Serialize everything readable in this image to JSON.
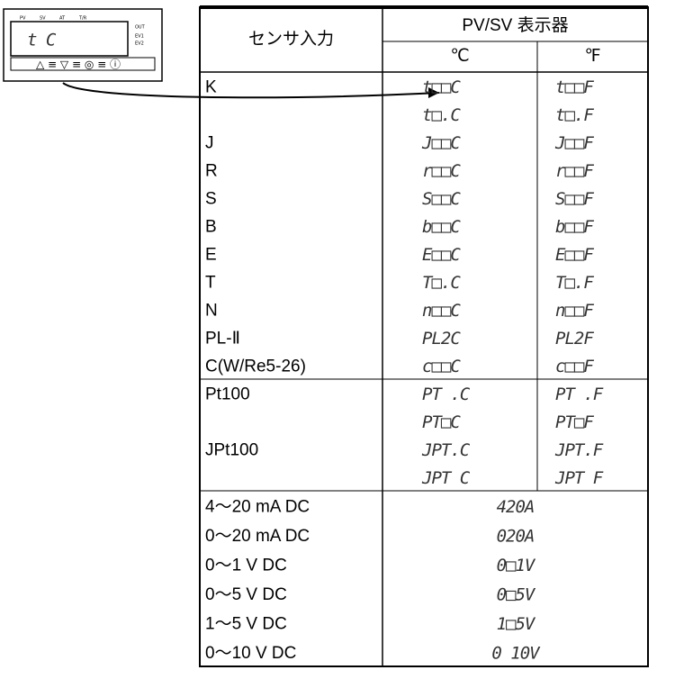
{
  "device": {
    "labels": [
      "PV",
      "SV",
      "AT",
      "T/R",
      "OUT",
      "EV1",
      "EV2"
    ],
    "display": "t   C"
  },
  "table": {
    "header": {
      "sensor": "センサ入力",
      "display": "PV/SV 表示器",
      "c": "℃",
      "f": "℉"
    },
    "sections": [
      {
        "rows": [
          {
            "label": "K",
            "c": "t□□C",
            "f": "t□□F"
          },
          {
            "label": null,
            "c": "t□.C",
            "f": "t□.F"
          },
          {
            "label": "J",
            "c": "J□□C",
            "f": "J□□F"
          },
          {
            "label": "R",
            "c": "r□□C",
            "f": "r□□F"
          },
          {
            "label": "S",
            "c": "S□□C",
            "f": "S□□F"
          },
          {
            "label": "B",
            "c": "b□□C",
            "f": "b□□F"
          },
          {
            "label": "E",
            "c": "E□□C",
            "f": "E□□F"
          },
          {
            "label": "T",
            "c": "T□.C",
            "f": "T□.F"
          },
          {
            "label": "N",
            "c": "n□□C",
            "f": "n□□F"
          },
          {
            "label": "PL-Ⅱ",
            "c": "PL2C",
            "f": "PL2F"
          },
          {
            "label": "C(W/Re5-26)",
            "c": "c□□C",
            "f": "c□□F"
          }
        ]
      },
      {
        "rows": [
          {
            "label": "Pt100",
            "c": "PT .C",
            "f": "PT .F"
          },
          {
            "label": null,
            "c": "PT□C",
            "f": "PT□F"
          },
          {
            "label": "JPt100",
            "c": "JPT.C",
            "f": "JPT.F"
          },
          {
            "label": null,
            "c": "JPT C",
            "f": "JPT F"
          }
        ]
      },
      {
        "rows": [
          {
            "label": "4～20 mA DC",
            "value": "420A"
          },
          {
            "label": "0～20 mA DC",
            "value": "020A"
          },
          {
            "label": "0～1 V DC",
            "value": "0□1V"
          },
          {
            "label": "0～5 V DC",
            "value": "0□5V"
          },
          {
            "label": "1～5 V DC",
            "value": "1□5V"
          },
          {
            "label": "0～10 V DC",
            "value": "0 10V"
          }
        ]
      }
    ]
  }
}
